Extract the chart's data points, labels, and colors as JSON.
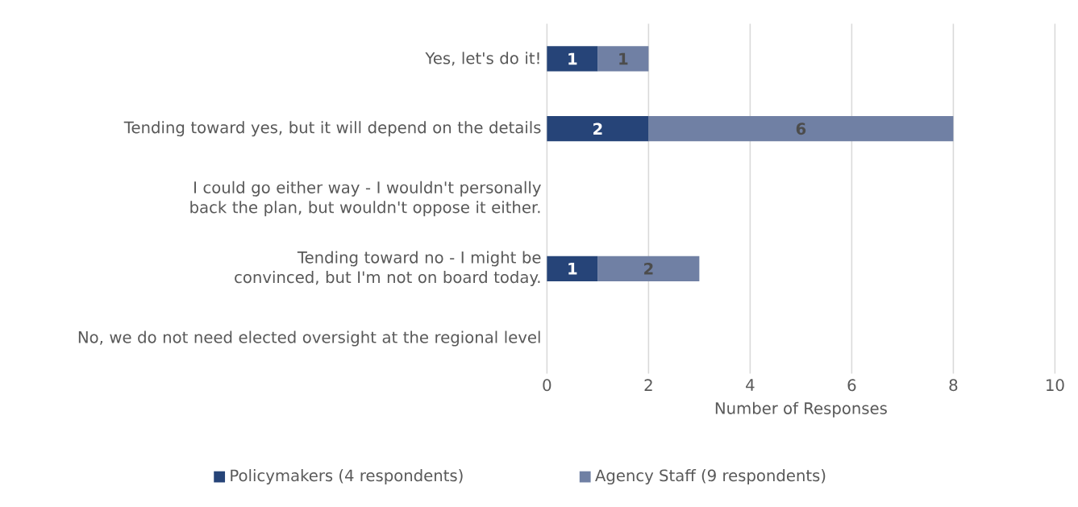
{
  "chart_data": {
    "type": "bar",
    "orientation": "horizontal",
    "stacked": true,
    "categories": [
      "Yes, let's do it!",
      "Tending toward yes, but it will depend on the details",
      "I could go either way - I wouldn't personally back the plan, but wouldn't oppose it either.",
      "Tending toward no - I might be convinced, but I'm not on board today.",
      "No, we do not need elected oversight at the regional level"
    ],
    "series": [
      {
        "name": "Policymakers (4 respondents)",
        "color": "#264478",
        "values": [
          1,
          2,
          0,
          1,
          0
        ],
        "value_labels": [
          "1",
          "2",
          null,
          "1",
          null
        ]
      },
      {
        "name": "Agency Staff (9 respondents)",
        "color": "#7080a4",
        "values": [
          1,
          6,
          0,
          2,
          0
        ],
        "value_labels": [
          "1",
          "6",
          null,
          "2",
          null
        ]
      }
    ],
    "xlim": [
      0,
      10
    ],
    "xticks": [
      0,
      2,
      4,
      6,
      8,
      10
    ],
    "xlabel": "Number of Responses",
    "grid": "x",
    "legend": "bottom"
  }
}
